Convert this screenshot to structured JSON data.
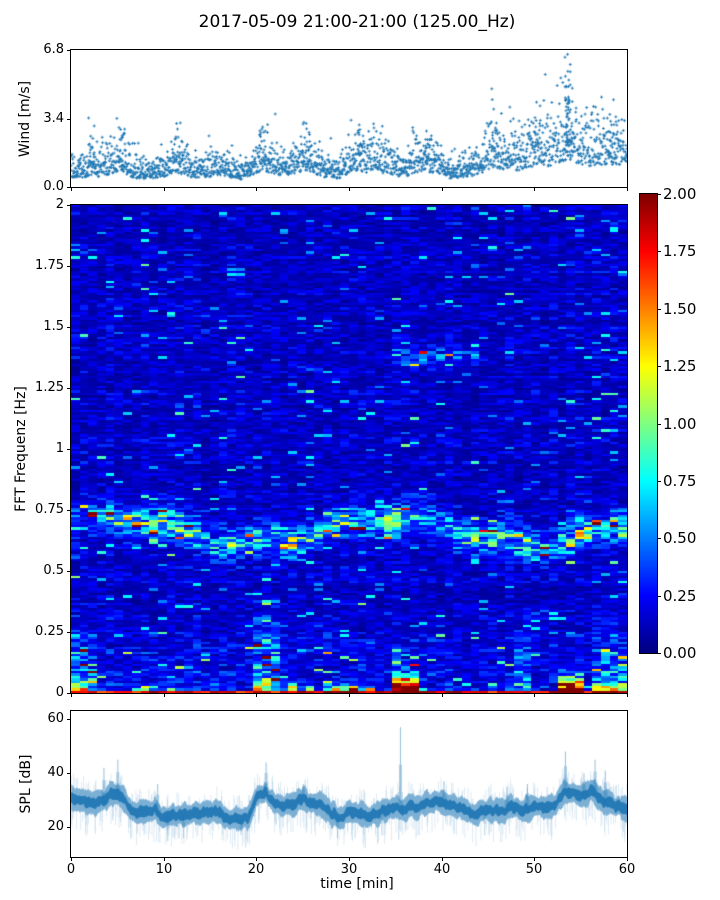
{
  "title": "2017-05-09 21:00-21:00 (125.00_Hz)",
  "colors": {
    "series": "#1f77b4",
    "axis": "#000000",
    "background": "#ffffff"
  },
  "chart_data": [
    {
      "id": "wind",
      "type": "scatter",
      "marker": "+",
      "color": "#1f77b4",
      "ylabel": "Wind [m/s]",
      "xlim": [
        0,
        60
      ],
      "ylim": [
        0,
        6.8
      ],
      "yticks": [
        {
          "value": 0.0,
          "label": "0.0"
        },
        {
          "value": 3.4,
          "label": "3.4"
        },
        {
          "value": 6.8,
          "label": "6.8"
        }
      ],
      "xtick_values": [
        0,
        10,
        20,
        30,
        40,
        50,
        60
      ],
      "n_points": 2200,
      "envelope_mean_per_min": [
        0.9,
        0.9,
        1.1,
        1.0,
        1.2,
        1.5,
        1.1,
        0.9,
        0.8,
        0.9,
        1.0,
        1.4,
        1.2,
        1.0,
        0.9,
        1.0,
        1.1,
        1.0,
        0.7,
        0.9,
        1.4,
        1.5,
        1.2,
        1.1,
        1.3,
        1.5,
        1.2,
        1.0,
        0.9,
        0.8,
        1.4,
        1.6,
        1.4,
        1.5,
        1.3,
        1.1,
        1.0,
        1.4,
        1.6,
        1.3,
        1.2,
        0.8,
        0.9,
        1.0,
        1.3,
        1.6,
        1.8,
        1.7,
        1.6,
        1.8,
        2.0,
        2.1,
        2.0,
        2.6,
        2.4,
        2.0,
        2.1,
        2.2,
        2.0,
        2.2,
        2.4
      ],
      "outlier_peaks": [
        {
          "t": 2.3,
          "v": 3.5
        },
        {
          "t": 5.5,
          "v": 3.3
        },
        {
          "t": 11.6,
          "v": 3.2
        },
        {
          "t": 20.8,
          "v": 3.1
        },
        {
          "t": 25.4,
          "v": 3.3
        },
        {
          "t": 31.0,
          "v": 3.3
        },
        {
          "t": 38.5,
          "v": 3.0
        },
        {
          "t": 45.8,
          "v": 3.0
        },
        {
          "t": 50.3,
          "v": 3.3
        },
        {
          "t": 53.7,
          "v": 6.8
        },
        {
          "t": 58.5,
          "v": 3.4
        }
      ]
    },
    {
      "id": "spectrogram",
      "type": "heatmap",
      "colormap": "jet",
      "ylabel": "FFT Frequenz [Hz]",
      "xlim": [
        0,
        60
      ],
      "ylim": [
        0,
        2
      ],
      "clim": [
        0,
        2
      ],
      "yticks": [
        {
          "value": 2,
          "label": "2"
        },
        {
          "value": 1.75,
          "label": "1.75"
        },
        {
          "value": 1.5,
          "label": "1.5"
        },
        {
          "value": 1.25,
          "label": "1.25"
        },
        {
          "value": 1,
          "label": "1"
        },
        {
          "value": 0.75,
          "label": "0.75"
        },
        {
          "value": 0.5,
          "label": "0.5"
        },
        {
          "value": 0.25,
          "label": "0.25"
        },
        {
          "value": 0,
          "label": "0"
        }
      ],
      "xtick_values": [
        0,
        10,
        20,
        30,
        40,
        50,
        60
      ],
      "background_level": 0.155,
      "low_freq_boost": {
        "below_hz": 0.42,
        "amp": 0.11
      },
      "surface_wave_band": {
        "center_hz": 0.665,
        "wander_hz": 0.055,
        "sigma_hz": 0.042,
        "amp": 0.5,
        "bright_segments": [
          {
            "t0": 0,
            "t1": 3,
            "boost": 1.25
          },
          {
            "t0": 8,
            "t1": 14,
            "boost": 1.2
          },
          {
            "t0": 19.5,
            "t1": 24,
            "boost": 1.3
          },
          {
            "t0": 28.5,
            "t1": 35.5,
            "boost": 1.5
          },
          {
            "t0": 41.5,
            "t1": 50,
            "boost": 1.35
          }
        ]
      },
      "secondary_band": {
        "center_hz": 1.38,
        "t0": 35,
        "t1": 44,
        "sigma_hz": 0.03,
        "amp": 0.22
      },
      "bottom_line": {
        "below_hz": 0.012,
        "value_min": 1.55,
        "value_max": 2.0
      },
      "hotspots": [
        {
          "t0": 0,
          "t1": 2.6,
          "f_top": 0.32,
          "amp": 0.4
        },
        {
          "t0": 0,
          "t1": 2.2,
          "f_top": 0.05,
          "amp": 1.1
        },
        {
          "t0": 7,
          "t1": 8.6,
          "f_top": 0.05,
          "amp": 0.9
        },
        {
          "t0": 10,
          "t1": 11,
          "f_top": 0.05,
          "amp": 0.6
        },
        {
          "t0": 14.8,
          "t1": 16.2,
          "f_top": 0.04,
          "amp": 0.8
        },
        {
          "t0": 19.3,
          "t1": 22.3,
          "f_top": 0.45,
          "amp": 0.45
        },
        {
          "t0": 19.6,
          "t1": 21.2,
          "f_top": 0.07,
          "amp": 1.0
        },
        {
          "t0": 23,
          "t1": 24.2,
          "f_top": 0.05,
          "amp": 0.9
        },
        {
          "t0": 25,
          "t1": 33,
          "f_top": 0.04,
          "amp": 1.2
        },
        {
          "t0": 27.5,
          "t1": 31,
          "f_top": 0.025,
          "amp": 1.7
        },
        {
          "t0": 34.6,
          "t1": 37.6,
          "f_top": 0.08,
          "amp": 1.95
        },
        {
          "t0": 34.6,
          "t1": 37.6,
          "f_top": 0.14,
          "amp": 0.8
        },
        {
          "t0": 47.6,
          "t1": 49.4,
          "f_top": 0.3,
          "amp": 0.4
        },
        {
          "t0": 52.6,
          "t1": 55.1,
          "f_top": 0.07,
          "amp": 1.95
        },
        {
          "t0": 52.6,
          "t1": 55.1,
          "f_top": 0.12,
          "amp": 0.7
        },
        {
          "t0": 56.3,
          "t1": 60,
          "f_top": 0.33,
          "amp": 0.35
        },
        {
          "t0": 56.3,
          "t1": 60,
          "f_top": 0.05,
          "amp": 1.3
        }
      ]
    },
    {
      "id": "spl",
      "type": "line",
      "color": "#1f77b4",
      "ylabel": "SPL [dB]",
      "xlabel": "time [min]",
      "xlim": [
        0,
        60
      ],
      "ylim": [
        9,
        63
      ],
      "yticks": [
        {
          "value": 20,
          "label": "20"
        },
        {
          "value": 40,
          "label": "40"
        },
        {
          "value": 60,
          "label": "60"
        }
      ],
      "xticks": [
        {
          "value": 0,
          "label": "0"
        },
        {
          "value": 10,
          "label": "10"
        },
        {
          "value": 20,
          "label": "20"
        },
        {
          "value": 30,
          "label": "30"
        },
        {
          "value": 40,
          "label": "40"
        },
        {
          "value": 50,
          "label": "50"
        },
        {
          "value": 60,
          "label": "60"
        }
      ],
      "center_db_per_min": [
        30,
        29,
        28,
        30,
        32,
        33,
        29,
        26,
        25,
        26,
        23,
        25,
        24,
        25,
        25,
        26,
        26,
        24,
        22,
        23,
        30,
        33,
        28,
        27,
        28,
        30,
        28,
        27,
        25,
        23,
        27,
        26,
        25,
        25,
        26,
        28,
        27,
        27,
        28,
        28,
        29,
        27,
        26,
        25,
        26,
        26,
        27,
        27,
        27,
        28,
        28,
        28,
        28,
        32,
        32,
        31,
        33,
        30,
        29,
        28,
        27
      ],
      "band_halfwidth_db": 3.6,
      "up_spikes": [
        {
          "t": 3.5,
          "peak": 42
        },
        {
          "t": 5.0,
          "peak": 45
        },
        {
          "t": 9.3,
          "peak": 36
        },
        {
          "t": 21.0,
          "peak": 44
        },
        {
          "t": 25.0,
          "peak": 36
        },
        {
          "t": 35.5,
          "peak": 57
        },
        {
          "t": 40.2,
          "peak": 37
        },
        {
          "t": 47.0,
          "peak": 35
        },
        {
          "t": 49.2,
          "peak": 36
        },
        {
          "t": 53.3,
          "peak": 48
        },
        {
          "t": 55.3,
          "peak": 40
        },
        {
          "t": 56.5,
          "peak": 45
        },
        {
          "t": 57.6,
          "peak": 41
        }
      ],
      "down_dips": [
        {
          "t": 10.4,
          "low": 15
        },
        {
          "t": 12.1,
          "low": 16
        },
        {
          "t": 18.3,
          "low": 17
        },
        {
          "t": 28.7,
          "low": 16
        },
        {
          "t": 33.5,
          "low": 17
        },
        {
          "t": 44.6,
          "low": 17
        }
      ]
    }
  ],
  "colorbar": {
    "clim": [
      0,
      2
    ],
    "colormap": "jet",
    "ticks": [
      {
        "value": 2.0,
        "label": "2.00"
      },
      {
        "value": 1.75,
        "label": "1.75"
      },
      {
        "value": 1.5,
        "label": "1.50"
      },
      {
        "value": 1.25,
        "label": "1.25"
      },
      {
        "value": 1.0,
        "label": "1.00"
      },
      {
        "value": 0.75,
        "label": "0.75"
      },
      {
        "value": 0.5,
        "label": "0.50"
      },
      {
        "value": 0.25,
        "label": "0.25"
      },
      {
        "value": 0.0,
        "label": "0.00"
      }
    ]
  }
}
